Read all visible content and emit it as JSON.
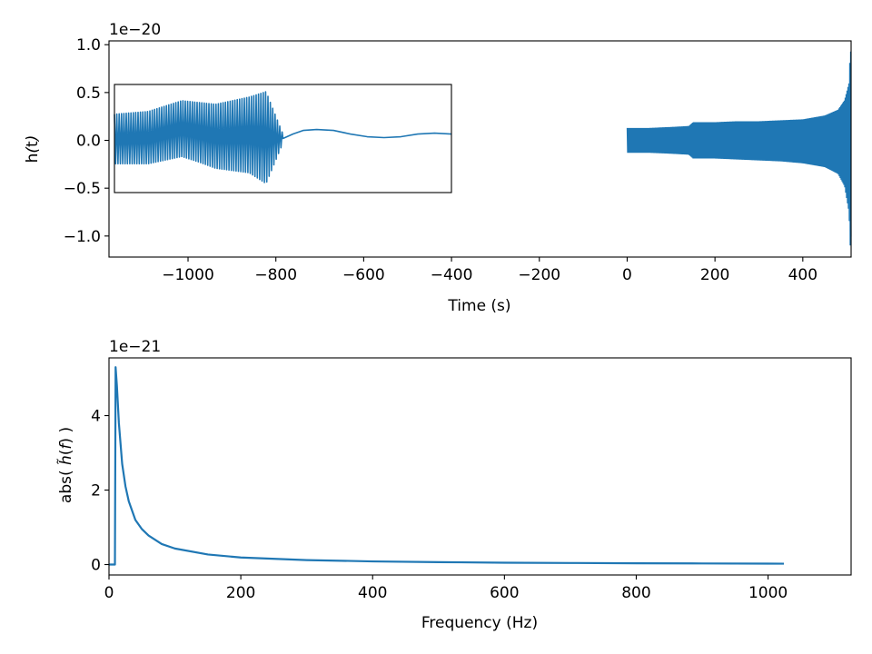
{
  "chart_data": [
    {
      "type": "line",
      "title": "",
      "xlabel": "Time (s)",
      "ylabel_parts": [
        "h",
        "(",
        "t",
        ")"
      ],
      "offset_label": "1e−20",
      "xlim": [
        -1180,
        510
      ],
      "ylim": [
        -1.22,
        1.04
      ],
      "x_ticks": [
        -1000,
        -800,
        -600,
        -400,
        -200,
        0,
        200,
        400
      ],
      "x_tick_labels": [
        "−1000",
        "−800",
        "−600",
        "−400",
        "−200",
        "0",
        "200",
        "400"
      ],
      "y_ticks": [
        -1.0,
        -0.5,
        0.0,
        0.5,
        1.0
      ],
      "y_tick_labels": [
        "−1.0",
        "−0.5",
        "0.0",
        "0.5",
        "1.0"
      ],
      "grid": false,
      "color": "#1f77b4",
      "series": [
        {
          "envelope": {
            "t": [
              0,
              50,
              100,
              140,
              150,
              200,
              250,
              300,
              350,
              400,
              450,
              480,
              495,
              505,
              508,
              510
            ],
            "upper": [
              0.13,
              0.13,
              0.14,
              0.15,
              0.19,
              0.19,
              0.2,
              0.2,
              0.21,
              0.22,
              0.26,
              0.32,
              0.42,
              0.6,
              0.95,
              0.9
            ],
            "lower": [
              -0.13,
              -0.13,
              -0.14,
              -0.15,
              -0.19,
              -0.19,
              -0.2,
              -0.21,
              -0.22,
              -0.24,
              -0.28,
              -0.35,
              -0.48,
              -0.75,
              -1.12,
              -1.0
            ]
          }
        }
      ],
      "inset": {
        "xlim": [
          0,
          1
        ],
        "ylim": [
          -0.6,
          0.6
        ],
        "series": [
          {
            "envelope": {
              "t": [
                0.0,
                0.1,
                0.2,
                0.25,
                0.3,
                0.4,
                0.45,
                0.5
              ],
              "upper": [
                0.27,
                0.3,
                0.42,
                0.4,
                0.38,
                0.46,
                0.52,
                0.05
              ],
              "lower": [
                -0.28,
                -0.28,
                -0.2,
                -0.26,
                -0.33,
                -0.38,
                -0.5,
                -0.05
              ]
            },
            "ringdown": {
              "t": [
                0.5,
                0.53,
                0.56,
                0.6,
                0.65,
                0.7,
                0.75,
                0.8,
                0.85,
                0.9,
                0.95,
                1.0
              ],
              "y": [
                0.0,
                0.05,
                0.09,
                0.1,
                0.09,
                0.05,
                0.02,
                0.01,
                0.02,
                0.05,
                0.06,
                0.05
              ]
            }
          }
        ]
      }
    },
    {
      "type": "line",
      "title": "",
      "xlabel": "Frequency (Hz)",
      "ylabel_parts": [
        "abs( ",
        "h̃",
        "(",
        "f",
        ") )"
      ],
      "offset_label": "1e−21",
      "xlim": [
        0,
        1126
      ],
      "ylim": [
        -0.28,
        5.55
      ],
      "x_ticks": [
        0,
        200,
        400,
        600,
        800,
        1000
      ],
      "x_tick_labels": [
        "0",
        "200",
        "400",
        "600",
        "800",
        "1000"
      ],
      "y_ticks": [
        0,
        2,
        4
      ],
      "y_tick_labels": [
        "0",
        "2",
        "4"
      ],
      "grid": false,
      "color": "#1f77b4",
      "series": [
        {
          "x": [
            0,
            9,
            10,
            12,
            15,
            20,
            25,
            30,
            40,
            50,
            60,
            80,
            100,
            150,
            200,
            300,
            400,
            500,
            600,
            700,
            800,
            900,
            1000,
            1024
          ],
          "y": [
            0,
            0,
            5.3,
            4.8,
            3.8,
            2.7,
            2.1,
            1.7,
            1.2,
            0.95,
            0.78,
            0.55,
            0.43,
            0.27,
            0.19,
            0.12,
            0.085,
            0.065,
            0.05,
            0.042,
            0.035,
            0.03,
            0.025,
            0.024
          ]
        }
      ]
    }
  ]
}
